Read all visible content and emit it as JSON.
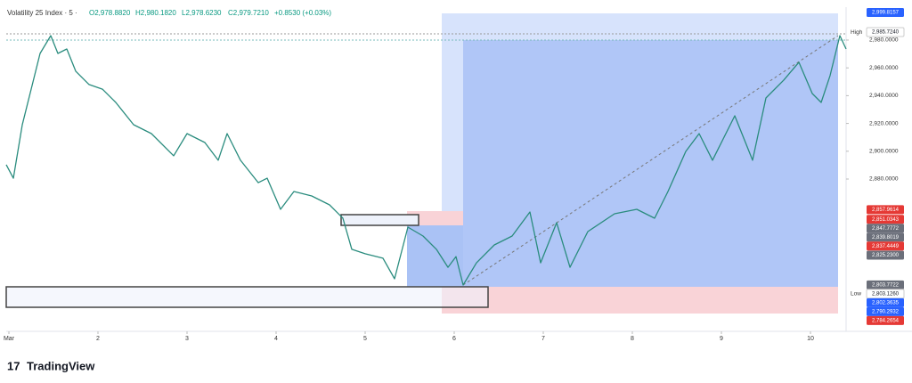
{
  "chart_data": {
    "type": "line",
    "title": "Volatility 25 Index · 5 ·",
    "ohlc": [
      "O2,978.8820",
      "H2,980.1820",
      "L2,978.6230",
      "C2,979.7210"
    ],
    "change": "+0.8530 (+0.03%)",
    "brand": "TradingView",
    "series": [
      {
        "name": "Volatility 25 Index",
        "color": "#2a8c7e",
        "x": [
          0.97,
          1.05,
          1.15,
          1.25,
          1.35,
          1.47,
          1.55,
          1.65,
          1.75,
          1.9,
          2.05,
          2.2,
          2.4,
          2.6,
          2.85,
          3.0,
          3.2,
          3.35,
          3.45,
          3.6,
          3.8,
          3.9,
          4.05,
          4.2,
          4.4,
          4.6,
          4.75,
          4.85,
          5.0,
          5.2,
          5.33,
          5.48,
          5.65,
          5.8,
          5.93,
          6.02,
          6.1,
          6.25,
          6.45,
          6.65,
          6.85,
          6.97,
          7.15,
          7.3,
          7.5,
          7.8,
          8.05,
          8.25,
          8.4,
          8.6,
          8.75,
          8.9,
          9.15,
          9.35,
          9.5,
          9.7,
          9.87,
          10.02,
          10.12,
          10.22,
          10.33,
          10.4
        ],
        "values": [
          2890.3,
          2880.6,
          2919,
          2944.7,
          2970.4,
          2983.2,
          2970.4,
          2973.6,
          2957.6,
          2948,
          2944.7,
          2935.1,
          2919.1,
          2912.7,
          2896.7,
          2912.7,
          2906.3,
          2893.5,
          2912.7,
          2893.5,
          2877.4,
          2880.6,
          2858.2,
          2871,
          2867.8,
          2861.4,
          2851.8,
          2829.4,
          2826.2,
          2823,
          2808.2,
          2845.4,
          2839,
          2829.4,
          2816.5,
          2824.2,
          2803.7,
          2819.7,
          2832.6,
          2839,
          2856.3,
          2819.7,
          2848.6,
          2816.5,
          2842.2,
          2855,
          2858.2,
          2851.8,
          2871,
          2899.9,
          2912.7,
          2893.5,
          2925.5,
          2893.5,
          2938.3,
          2951.2,
          2964,
          2941.5,
          2935.1,
          2954.4,
          2983.2,
          2973.6
        ]
      }
    ],
    "xlim": [
      0.97,
      10.4
    ],
    "xticks": [
      {
        "value": 1,
        "label": "Mar"
      },
      2,
      3,
      4,
      5,
      6,
      7,
      8,
      9,
      10
    ],
    "ylim": [
      2770.4,
      3003.7
    ],
    "yticks": [
      {
        "value": 2980,
        "label": "2,980.0000"
      },
      {
        "value": 2960,
        "label": "2,960.0000"
      },
      {
        "value": 2940,
        "label": "2,940.0000"
      },
      {
        "value": 2920,
        "label": "2,920.0000"
      },
      {
        "value": 2900,
        "label": "2,900.0000"
      },
      {
        "value": 2880,
        "label": "2,880.0000"
      }
    ],
    "price_labels": [
      {
        "value": 2999.8157,
        "label": "2,999.8157",
        "color": "#2962ff"
      },
      {
        "value": 2985.724,
        "label": "2,985.7240",
        "color": "#ffffff",
        "tag": "High"
      },
      {
        "value": 2857.9614,
        "label": "2,857.9614",
        "color": "#e53935"
      },
      {
        "value": 2851.0343,
        "label": "2,851.0343",
        "color": "#e53935"
      },
      {
        "value": 2847.7772,
        "label": "2,847.7772",
        "color": "#6b6f7a"
      },
      {
        "value": 2839.8019,
        "label": "2,839.8019",
        "color": "#6b6f7a"
      },
      {
        "value": 2837.4449,
        "label": "2,837.4449",
        "color": "#e53935"
      },
      {
        "value": 2825.23,
        "label": "2,825.2300",
        "color": "#6b6f7a"
      },
      {
        "value": 2803.7722,
        "label": "2,803.7722",
        "color": "#6b6f7a"
      },
      {
        "value": 2803.126,
        "label": "2,803.1260",
        "color": "#ffffff",
        "tag": "Low"
      },
      {
        "value": 2802.3635,
        "label": "2,802.3635",
        "color": "#2962ff"
      },
      {
        "value": 2790.2932,
        "label": "2,790.2932",
        "color": "#2962ff"
      },
      {
        "value": 2784.2654,
        "label": "2,784.2654",
        "color": "#e53935"
      }
    ]
  }
}
